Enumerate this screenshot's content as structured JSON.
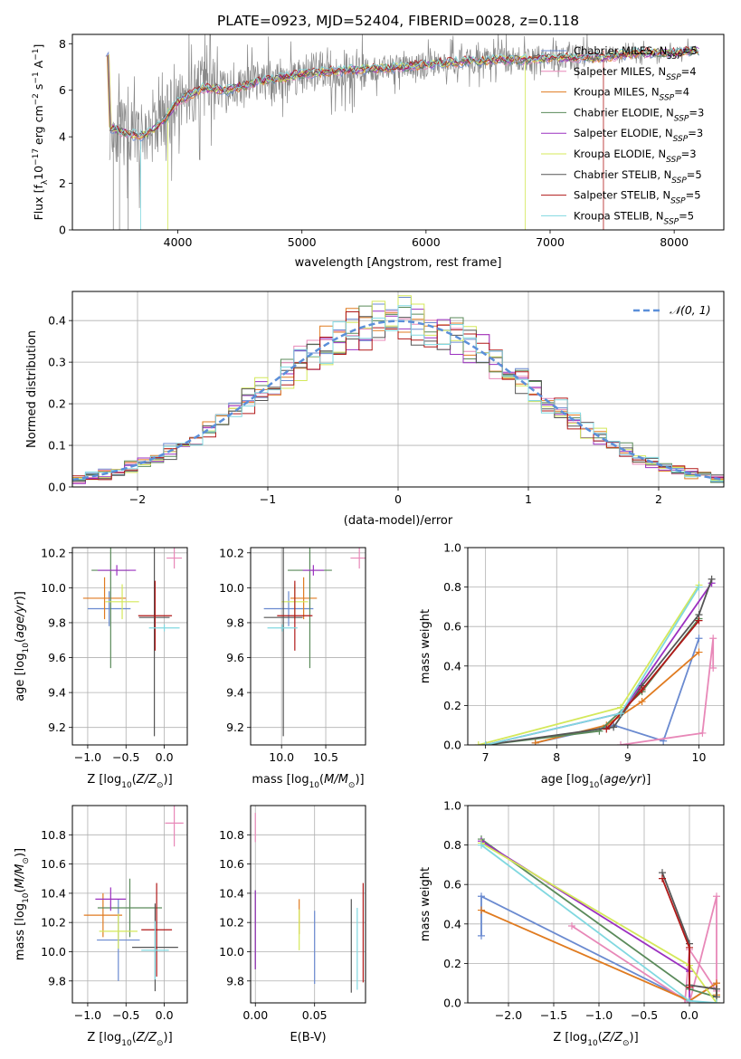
{
  "figure": {
    "title": "PLATE=0923, MJD=52404, FIBERID=0028, z=0.118"
  },
  "colors": {
    "Chabrier MILES": "#6a8ad0",
    "Salpeter MILES": "#e888b8",
    "Kroupa MILES": "#e07b20",
    "Chabrier ELODIE": "#5a8a5a",
    "Salpeter ELODIE": "#9b30c0",
    "Kroupa ELODIE": "#d4e85a",
    "Chabrier STELIB": "#555555",
    "Salpeter STELIB": "#b01818",
    "Kroupa STELIB": "#80d8e0",
    "normal": "#5b8fd9"
  },
  "chart_data": [
    {
      "id": "spectrum",
      "type": "line",
      "title": "PLATE=0923, MJD=52404, FIBERID=0028, z=0.118",
      "xlabel": "wavelength [Angstrom, rest frame]",
      "ylabel": "Flux [f_λ 10^-17 erg cm^-2 s^-1 A^-1]",
      "xlim": [
        3150,
        8400
      ],
      "ylim": [
        0,
        8.4
      ],
      "xticks": [
        4000,
        5000,
        6000,
        7000,
        8000
      ],
      "yticks": [
        0,
        2,
        4,
        6,
        8
      ],
      "grid": false,
      "legend_position": "top-right",
      "legend": [
        {
          "name": "Chabrier MILES",
          "nssp": "5"
        },
        {
          "name": "Salpeter MILES",
          "nssp": "4"
        },
        {
          "name": "Kroupa MILES",
          "nssp": "4"
        },
        {
          "name": "Chabrier ELODIE",
          "nssp": "3"
        },
        {
          "name": "Salpeter ELODIE",
          "nssp": "3"
        },
        {
          "name": "Kroupa ELODIE",
          "nssp": "3"
        },
        {
          "name": "Chabrier STELIB",
          "nssp": "5"
        },
        {
          "name": "Salpeter STELIB",
          "nssp": "5"
        },
        {
          "name": "Kroupa STELIB",
          "nssp": "5"
        }
      ],
      "data_profile": {
        "x": [
          3450,
          3550,
          3700,
          3800,
          3900,
          4000,
          4200,
          4400,
          4600,
          4800,
          5000,
          5200,
          5500,
          5800,
          6000,
          6200,
          6500,
          6800,
          7000,
          7200,
          7400,
          7700,
          8000,
          8150
        ],
        "y": [
          4.4,
          4.2,
          4.0,
          4.3,
          4.8,
          5.5,
          6.1,
          6.0,
          6.3,
          6.5,
          6.7,
          6.8,
          6.9,
          7.0,
          7.1,
          7.2,
          7.3,
          7.3,
          7.4,
          7.4,
          7.4,
          7.6,
          7.6,
          7.7
        ]
      }
    },
    {
      "id": "residuals",
      "type": "bar",
      "xlabel": "(data-model)/error",
      "ylabel": "Normed distribution",
      "xlim": [
        -2.5,
        2.5
      ],
      "ylim": [
        0,
        0.47
      ],
      "xticks": [
        -2,
        -1,
        0,
        1,
        2
      ],
      "yticks": [
        0.0,
        0.1,
        0.2,
        0.3,
        0.4
      ],
      "grid": true,
      "legend_position": "top-right",
      "legend_label": "𝒩(0, 1)",
      "bin_width": 0.1,
      "bins_from": -2.5,
      "bins_to": 2.5,
      "model": "gaussian mean 0 sigma 1"
    },
    {
      "id": "age-vs-z",
      "type": "scatter",
      "xlabel": "Z [log10(Z/Z⊙)]",
      "ylabel": "age  [log10(age/yr)]",
      "xlim": [
        -1.2,
        0.3
      ],
      "ylim": [
        9.1,
        10.23
      ],
      "xticks": [
        -1.0,
        -0.5,
        0.0
      ],
      "yticks": [
        9.2,
        9.4,
        9.6,
        9.8,
        10.0,
        10.2
      ],
      "grid": true,
      "points": [
        {
          "series": "Chabrier MILES",
          "x": -0.72,
          "y": 9.88,
          "xerr": 0.28,
          "yerr": 0.1
        },
        {
          "series": "Salpeter MILES",
          "x": 0.13,
          "y": 10.17,
          "xerr": 0.1,
          "yerr": 0.06
        },
        {
          "series": "Kroupa MILES",
          "x": -0.78,
          "y": 9.94,
          "xerr": 0.28,
          "yerr": 0.12
        },
        {
          "series": "Chabrier ELODIE",
          "x": -0.7,
          "y": 10.1,
          "xerr": 0.25,
          "yerr": 0.56
        },
        {
          "series": "Salpeter ELODIE",
          "x": -0.62,
          "y": 10.1,
          "xerr": 0.25,
          "yerr": 0.03
        },
        {
          "series": "Kroupa ELODIE",
          "x": -0.55,
          "y": 9.92,
          "xerr": 0.22,
          "yerr": 0.1
        },
        {
          "series": "Chabrier STELIB",
          "x": -0.13,
          "y": 9.83,
          "xerr": 0.2,
          "yerr": 0.68
        },
        {
          "series": "Salpeter STELIB",
          "x": -0.12,
          "y": 9.84,
          "xerr": 0.22,
          "yerr": 0.2
        },
        {
          "series": "Kroupa STELIB",
          "x": 0.0,
          "y": 9.77,
          "xerr": 0.2,
          "yerr": 0.02
        }
      ]
    },
    {
      "id": "age-vs-mass",
      "type": "scatter",
      "xlabel": "mass [log10(M/M⊙)]",
      "ylabel": "",
      "xlim": [
        9.65,
        10.95
      ],
      "ylim": [
        9.1,
        10.23
      ],
      "xticks": [
        10.0,
        10.5
      ],
      "yticks": [
        9.2,
        9.4,
        9.6,
        9.8,
        10.0,
        10.2
      ],
      "grid": true,
      "points": [
        {
          "series": "Chabrier MILES",
          "x": 10.08,
          "y": 9.88,
          "xerr": 0.28,
          "yerr": 0.1
        },
        {
          "series": "Salpeter MILES",
          "x": 10.88,
          "y": 10.17,
          "xerr": 0.1,
          "yerr": 0.06
        },
        {
          "series": "Kroupa MILES",
          "x": 10.25,
          "y": 9.94,
          "xerr": 0.15,
          "yerr": 0.12
        },
        {
          "series": "Chabrier ELODIE",
          "x": 10.32,
          "y": 10.1,
          "xerr": 0.25,
          "yerr": 0.56
        },
        {
          "series": "Salpeter ELODIE",
          "x": 10.36,
          "y": 10.1,
          "xerr": 0.12,
          "yerr": 0.03
        },
        {
          "series": "Kroupa ELODIE",
          "x": 10.15,
          "y": 9.92,
          "xerr": 0.15,
          "yerr": 0.1
        },
        {
          "series": "Chabrier STELIB",
          "x": 10.02,
          "y": 9.83,
          "xerr": 0.22,
          "yerr": 0.68
        },
        {
          "series": "Salpeter STELIB",
          "x": 10.15,
          "y": 9.84,
          "xerr": 0.2,
          "yerr": 0.2
        },
        {
          "series": "Kroupa STELIB",
          "x": 10.01,
          "y": 9.77,
          "xerr": 0.17,
          "yerr": 0.02
        }
      ]
    },
    {
      "id": "weight-vs-age",
      "type": "line",
      "xlabel": "age  [log10(age/yr)]",
      "ylabel": "mass weight",
      "xlim": [
        6.75,
        10.35
      ],
      "ylim": [
        0,
        1.0
      ],
      "xticks": [
        7,
        8,
        9,
        10
      ],
      "yticks": [
        0.0,
        0.2,
        0.4,
        0.6,
        0.8,
        1.0
      ],
      "grid": true,
      "series": [
        {
          "series": "Chabrier MILES",
          "x": [
            7.7,
            8.8,
            9.5,
            10.0
          ],
          "y": [
            0.01,
            0.1,
            0.02,
            0.54
          ]
        },
        {
          "series": "Salpeter MILES",
          "x": [
            8.9,
            10.05,
            10.2,
            10.2
          ],
          "y": [
            0.0,
            0.06,
            0.54,
            0.39
          ]
        },
        {
          "series": "Kroupa MILES",
          "x": [
            7.7,
            8.7,
            9.2,
            10.0
          ],
          "y": [
            0.01,
            0.1,
            0.22,
            0.47
          ]
        },
        {
          "series": "Chabrier ELODIE",
          "x": [
            7.0,
            8.6,
            9.2,
            10.0
          ],
          "y": [
            0.0,
            0.07,
            0.27,
            0.64
          ]
        },
        {
          "series": "Salpeter ELODIE",
          "x": [
            7.0,
            8.9,
            10.18
          ],
          "y": [
            0.0,
            0.16,
            0.82
          ]
        },
        {
          "series": "Kroupa ELODIE",
          "x": [
            6.9,
            8.9,
            10.0
          ],
          "y": [
            0.0,
            0.19,
            0.81
          ]
        },
        {
          "series": "Chabrier STELIB",
          "x": [
            7.0,
            8.8,
            9.2,
            10.0,
            10.18
          ],
          "y": [
            0.0,
            0.09,
            0.3,
            0.66,
            0.84
          ]
        },
        {
          "series": "Salpeter STELIB",
          "x": [
            8.7,
            9.2,
            10.0
          ],
          "y": [
            0.08,
            0.28,
            0.63
          ]
        },
        {
          "series": "Kroupa STELIB",
          "x": [
            7.0,
            8.9,
            10.0
          ],
          "y": [
            0.0,
            0.16,
            0.8
          ]
        }
      ]
    },
    {
      "id": "mass-vs-z",
      "type": "scatter",
      "xlabel": "Z [log10(Z/Z⊙)]",
      "ylabel": "mass [log10(M/M⊙)]",
      "xlim": [
        -1.2,
        0.3
      ],
      "ylim": [
        9.65,
        11.0
      ],
      "xticks": [
        -1.0,
        -0.5,
        0.0
      ],
      "yticks": [
        9.8,
        10.0,
        10.2,
        10.4,
        10.6,
        10.8
      ],
      "grid": true,
      "points": [
        {
          "series": "Chabrier MILES",
          "x": -0.6,
          "y": 10.08,
          "xerr": 0.28,
          "yerr": 0.28
        },
        {
          "series": "Salpeter MILES",
          "x": 0.13,
          "y": 10.88,
          "xerr": 0.12,
          "yerr": 0.16
        },
        {
          "series": "Kroupa MILES",
          "x": -0.8,
          "y": 10.25,
          "xerr": 0.25,
          "yerr": 0.15
        },
        {
          "series": "Chabrier ELODIE",
          "x": -0.45,
          "y": 10.3,
          "xerr": 0.42,
          "yerr": 0.2
        },
        {
          "series": "Salpeter ELODIE",
          "x": -0.7,
          "y": 10.36,
          "xerr": 0.2,
          "yerr": 0.08
        },
        {
          "series": "Kroupa ELODIE",
          "x": -0.6,
          "y": 10.14,
          "xerr": 0.25,
          "yerr": 0.12
        },
        {
          "series": "Chabrier STELIB",
          "x": -0.12,
          "y": 10.03,
          "xerr": 0.3,
          "yerr": 0.3
        },
        {
          "series": "Salpeter STELIB",
          "x": -0.1,
          "y": 10.15,
          "xerr": 0.2,
          "yerr": 0.32
        },
        {
          "series": "Kroupa STELIB",
          "x": -0.12,
          "y": 10.01,
          "xerr": 0.18,
          "yerr": 0.2
        }
      ]
    },
    {
      "id": "mass-vs-ebv",
      "type": "scatter",
      "xlabel": "E(B-V)",
      "ylabel": "",
      "xlim": [
        -0.004,
        0.093
      ],
      "ylim": [
        9.65,
        11.0
      ],
      "xticks": [
        0.0,
        0.05
      ],
      "yticks": [
        9.8,
        10.0,
        10.2,
        10.4,
        10.6,
        10.8
      ],
      "grid": true,
      "points": [
        {
          "series": "Chabrier MILES",
          "x": 0.05,
          "y": 10.03,
          "yerr": 0.25
        },
        {
          "series": "Salpeter MILES",
          "x": 0.0,
          "y": 10.85,
          "yerr": 0.1
        },
        {
          "series": "Kroupa MILES",
          "x": 0.037,
          "y": 10.24,
          "yerr": 0.12
        },
        {
          "series": "Chabrier ELODIE",
          "x": 0.0,
          "y": 10.15,
          "yerr": 0.27
        },
        {
          "series": "Salpeter ELODIE",
          "x": 0.0,
          "y": 10.15,
          "yerr": 0.27
        },
        {
          "series": "Kroupa ELODIE",
          "x": 0.037,
          "y": 10.15,
          "yerr": 0.14
        },
        {
          "series": "Chabrier STELIB",
          "x": 0.081,
          "y": 10.04,
          "yerr": 0.32
        },
        {
          "series": "Salpeter STELIB",
          "x": 0.091,
          "y": 10.13,
          "yerr": 0.34
        },
        {
          "series": "Kroupa STELIB",
          "x": 0.086,
          "y": 10.02,
          "yerr": 0.28
        }
      ]
    },
    {
      "id": "weight-vs-z",
      "type": "line",
      "xlabel": "Z [log10(Z/Z⊙)]",
      "ylabel": "mass weight",
      "xlim": [
        -2.45,
        0.38
      ],
      "ylim": [
        0,
        1.0
      ],
      "xticks": [
        -2.0,
        -1.5,
        -1.0,
        -0.5,
        0.0
      ],
      "yticks": [
        0.0,
        0.2,
        0.4,
        0.6,
        0.8,
        1.0
      ],
      "grid": true,
      "series": [
        {
          "series": "Chabrier MILES",
          "x": [
            -2.3,
            -2.3,
            0.0,
            0.3
          ],
          "y": [
            0.34,
            0.54,
            0.01,
            0.1
          ]
        },
        {
          "series": "Salpeter MILES",
          "x": [
            -1.3,
            0.0,
            0.3,
            0.3,
            0.0,
            -0.05
          ],
          "y": [
            0.39,
            0.0,
            0.54,
            0.06,
            0.27,
            0.0
          ]
        },
        {
          "series": "Kroupa MILES",
          "x": [
            -2.3,
            0.0,
            0.3,
            0.3
          ],
          "y": [
            0.47,
            0.01,
            0.1,
            0.04
          ]
        },
        {
          "series": "Chabrier ELODIE",
          "x": [
            -2.3,
            0.0,
            0.3
          ],
          "y": [
            0.83,
            0.07,
            0.03
          ]
        },
        {
          "series": "Salpeter ELODIE",
          "x": [
            -2.3,
            0.0,
            0.0
          ],
          "y": [
            0.82,
            0.16,
            0.01
          ]
        },
        {
          "series": "Kroupa ELODIE",
          "x": [
            -2.3,
            0.0,
            0.3
          ],
          "y": [
            0.81,
            0.19,
            0.0
          ]
        },
        {
          "series": "Chabrier STELIB",
          "x": [
            -0.3,
            0.0,
            0.0,
            0.3,
            0.3
          ],
          "y": [
            0.66,
            0.3,
            0.09,
            0.07,
            0.03
          ]
        },
        {
          "series": "Salpeter STELIB",
          "x": [
            -0.3,
            0.0,
            0.0
          ],
          "y": [
            0.63,
            0.28,
            0.08
          ]
        },
        {
          "series": "Kroupa STELIB",
          "x": [
            -2.3,
            0.0,
            0.3
          ],
          "y": [
            0.8,
            0.01,
            0.0
          ]
        }
      ]
    }
  ]
}
